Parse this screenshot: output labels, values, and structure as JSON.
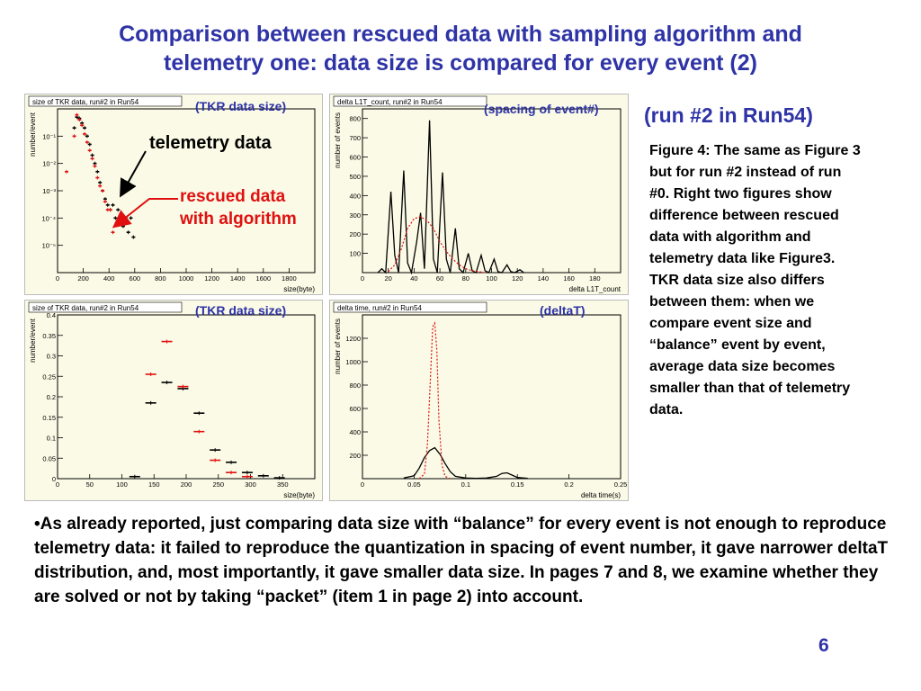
{
  "slide": {
    "title_line1": "Comparison between rescued data with sampling algorithm and",
    "title_line2": "telemetry one: data size is compared for every event (2)",
    "run_label": "(run #2 in Run54)",
    "caption": "Figure 4: The same as Figure 3 but for run #2 instead of run #0. Right two figures show difference between rescued data with algorithm and telemetry data like Figure3. TKR data size also differs between them: when we compare event size and “balance” event by event, average data size becomes smaller than that of telemetry data.",
    "bullet": "•As already reported, just comparing data size with “balance” for every event is not enough to reproduce telemetry data: it failed to reproduce the quantization in spacing of event number, it gave narrower deltaT distribution, and, most importantly, it gave smaller data size. In pages 7 and 8, we examine whether they are solved or not by taking “packet” (item 1 in page 2) into account.",
    "page_number": "6",
    "annotation_telemetry": "telemetry data",
    "annotation_rescued_line1": "rescued data",
    "annotation_rescued_line2": "with algorithm"
  },
  "colors": {
    "title": "#2e33a6",
    "rescued": "#e01010",
    "telemetry": "#000000",
    "panel_bg": "#fafae6"
  },
  "plots": [
    {
      "tag": "(TKR data size)",
      "title": "size of TKR data, run#2 in Run54",
      "ylabel": "number/event",
      "xlabel": "size(byte)"
    },
    {
      "tag": "(spacing of event#)",
      "title": "delta L1T_count, run#2 in Run54",
      "ylabel": "number of events",
      "xlabel": "delta L1T_count"
    },
    {
      "tag": "(TKR data size)",
      "title": "size of TKR data, run#2 in Run54",
      "ylabel": "number/event",
      "xlabel": "size(byte)"
    },
    {
      "tag": "(deltaT)",
      "title": "delta time, run#2 in Run54",
      "ylabel": "number of events",
      "xlabel": "delta time(s)"
    }
  ],
  "chart_data": [
    {
      "type": "scatter",
      "title": "size of TKR data, run#2 in Run54",
      "xlabel": "size(byte)",
      "ylabel": "number/event",
      "xlim": [
        0,
        2000
      ],
      "ylim": [
        1e-06,
        1
      ],
      "log_y": true,
      "x_ticks": [
        "0",
        "200",
        "400",
        "600",
        "800",
        "1000",
        "1200",
        "1400",
        "1600",
        "1800"
      ],
      "y_ticks": [
        "10⁻¹",
        "10⁻²",
        "10⁻³",
        "10⁻⁴",
        "10⁻⁵"
      ],
      "series": [
        {
          "name": "telemetry data",
          "color": "#000000",
          "x": [
            130,
            150,
            170,
            190,
            210,
            230,
            250,
            270,
            290,
            310,
            330,
            350,
            370,
            390,
            410,
            430,
            450,
            470,
            490,
            510,
            530,
            550,
            570,
            590
          ],
          "y": [
            0.2,
            0.5,
            0.45,
            0.3,
            0.2,
            0.1,
            0.05,
            0.02,
            0.01,
            0.005,
            0.002,
            0.001,
            0.0005,
            0.0003,
            0.0002,
            0.0003,
            0.0001,
            0.0002,
            0.0001,
            5e-05,
            0.0001,
            3e-05,
            0.0001,
            2e-05
          ]
        },
        {
          "name": "rescued data with algorithm",
          "color": "#e01010",
          "x": [
            70,
            130,
            150,
            170,
            190,
            210,
            230,
            250,
            270,
            290,
            310,
            330,
            350,
            370,
            390,
            410,
            430
          ],
          "y": [
            0.005,
            0.1,
            0.6,
            0.4,
            0.25,
            0.12,
            0.06,
            0.03,
            0.015,
            0.008,
            0.003,
            0.0015,
            0.001,
            0.0004,
            0.0002,
            0.0002,
            3e-05
          ]
        }
      ]
    },
    {
      "type": "line",
      "title": "delta L1T_count, run#2 in Run54",
      "xlabel": "delta L1T_count",
      "ylabel": "number of events",
      "xlim": [
        0,
        200
      ],
      "ylim": [
        0,
        850
      ],
      "x_ticks": [
        "0",
        "20",
        "40",
        "60",
        "80",
        "100",
        "120",
        "140",
        "160",
        "180"
      ],
      "y_ticks": [
        "100",
        "200",
        "300",
        "400",
        "500",
        "600",
        "700",
        "800"
      ],
      "series": [
        {
          "name": "telemetry data",
          "color": "#000000",
          "x": [
            12,
            15,
            18,
            22,
            25,
            28,
            32,
            35,
            38,
            42,
            45,
            48,
            52,
            55,
            58,
            62,
            65,
            68,
            72,
            75,
            78,
            82,
            85,
            88,
            92,
            95,
            98,
            102,
            105,
            108,
            112,
            115,
            118,
            122,
            125
          ],
          "y": [
            0,
            20,
            0,
            420,
            90,
            0,
            530,
            50,
            0,
            160,
            310,
            20,
            790,
            70,
            0,
            520,
            70,
            0,
            230,
            20,
            0,
            100,
            10,
            0,
            90,
            10,
            0,
            70,
            5,
            0,
            40,
            5,
            0,
            15,
            0
          ]
        },
        {
          "name": "rescued data with algorithm",
          "color": "#e01010",
          "x": [
            20,
            25,
            30,
            35,
            40,
            45,
            50,
            55,
            60,
            65,
            70,
            75,
            80,
            85,
            90,
            95
          ],
          "y": [
            5,
            40,
            120,
            230,
            280,
            290,
            270,
            230,
            160,
            110,
            70,
            40,
            20,
            10,
            5,
            0
          ]
        }
      ]
    },
    {
      "type": "scatter",
      "title": "size of TKR data, run#2 in Run54",
      "xlabel": "size(byte)",
      "ylabel": "number/event",
      "xlim": [
        0,
        400
      ],
      "ylim": [
        0,
        0.4
      ],
      "x_ticks": [
        "0",
        "50",
        "100",
        "150",
        "200",
        "250",
        "300",
        "350"
      ],
      "y_ticks": [
        "0",
        "0.05",
        "0.1",
        "0.15",
        "0.2",
        "0.25",
        "0.3",
        "0.35",
        "0.4"
      ],
      "series": [
        {
          "name": "telemetry data",
          "color": "#000000",
          "x": [
            120,
            145,
            170,
            195,
            220,
            245,
            270,
            295,
            320,
            345
          ],
          "y": [
            0.005,
            0.185,
            0.235,
            0.22,
            0.16,
            0.07,
            0.04,
            0.015,
            0.007,
            0.002
          ]
        },
        {
          "name": "rescued data with algorithm",
          "color": "#e01010",
          "x": [
            145,
            170,
            195,
            220,
            245,
            270,
            295
          ],
          "y": [
            0.255,
            0.335,
            0.225,
            0.115,
            0.045,
            0.015,
            0.005
          ]
        }
      ]
    },
    {
      "type": "line",
      "title": "delta time, run#2 in Run54",
      "xlabel": "delta time(s)",
      "ylabel": "number of events",
      "xlim": [
        0,
        0.25
      ],
      "ylim": [
        0,
        1400
      ],
      "x_ticks": [
        "0",
        "0.05",
        "0.1",
        "0.15",
        "0.2",
        "0.25"
      ],
      "y_ticks": [
        "200",
        "400",
        "600",
        "800",
        "1000",
        "1200"
      ],
      "series": [
        {
          "name": "telemetry data",
          "color": "#000000",
          "x": [
            0.04,
            0.05,
            0.055,
            0.06,
            0.065,
            0.07,
            0.075,
            0.08,
            0.085,
            0.09,
            0.1,
            0.11,
            0.12,
            0.13,
            0.135,
            0.14,
            0.145,
            0.15,
            0.16
          ],
          "y": [
            5,
            25,
            90,
            180,
            240,
            265,
            210,
            130,
            60,
            20,
            5,
            2,
            5,
            20,
            45,
            50,
            30,
            10,
            2
          ]
        },
        {
          "name": "rescued data with algorithm",
          "color": "#e01010",
          "x": [
            0.055,
            0.06,
            0.063,
            0.066,
            0.068,
            0.07,
            0.072,
            0.074,
            0.077,
            0.08,
            0.085
          ],
          "y": [
            0,
            40,
            300,
            900,
            1300,
            1330,
            1100,
            500,
            120,
            20,
            0
          ]
        }
      ]
    }
  ]
}
